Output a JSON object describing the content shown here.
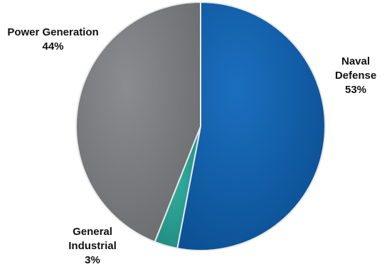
{
  "chart_data": {
    "type": "pie",
    "title": "",
    "start_angle_deg": 0,
    "direction": "clockwise",
    "slices": [
      {
        "label_lines": [
          "Naval",
          "Defense"
        ],
        "value": 53,
        "value_label": "53%",
        "color": "#0a5aa6"
      },
      {
        "label_lines": [
          "General",
          "Industrial"
        ],
        "value": 3,
        "value_label": "3%",
        "color": "#2a9d8f"
      },
      {
        "label_lines": [
          "Power Generation"
        ],
        "value": 44,
        "value_label": "44%",
        "color": "#7b7d80"
      }
    ]
  }
}
